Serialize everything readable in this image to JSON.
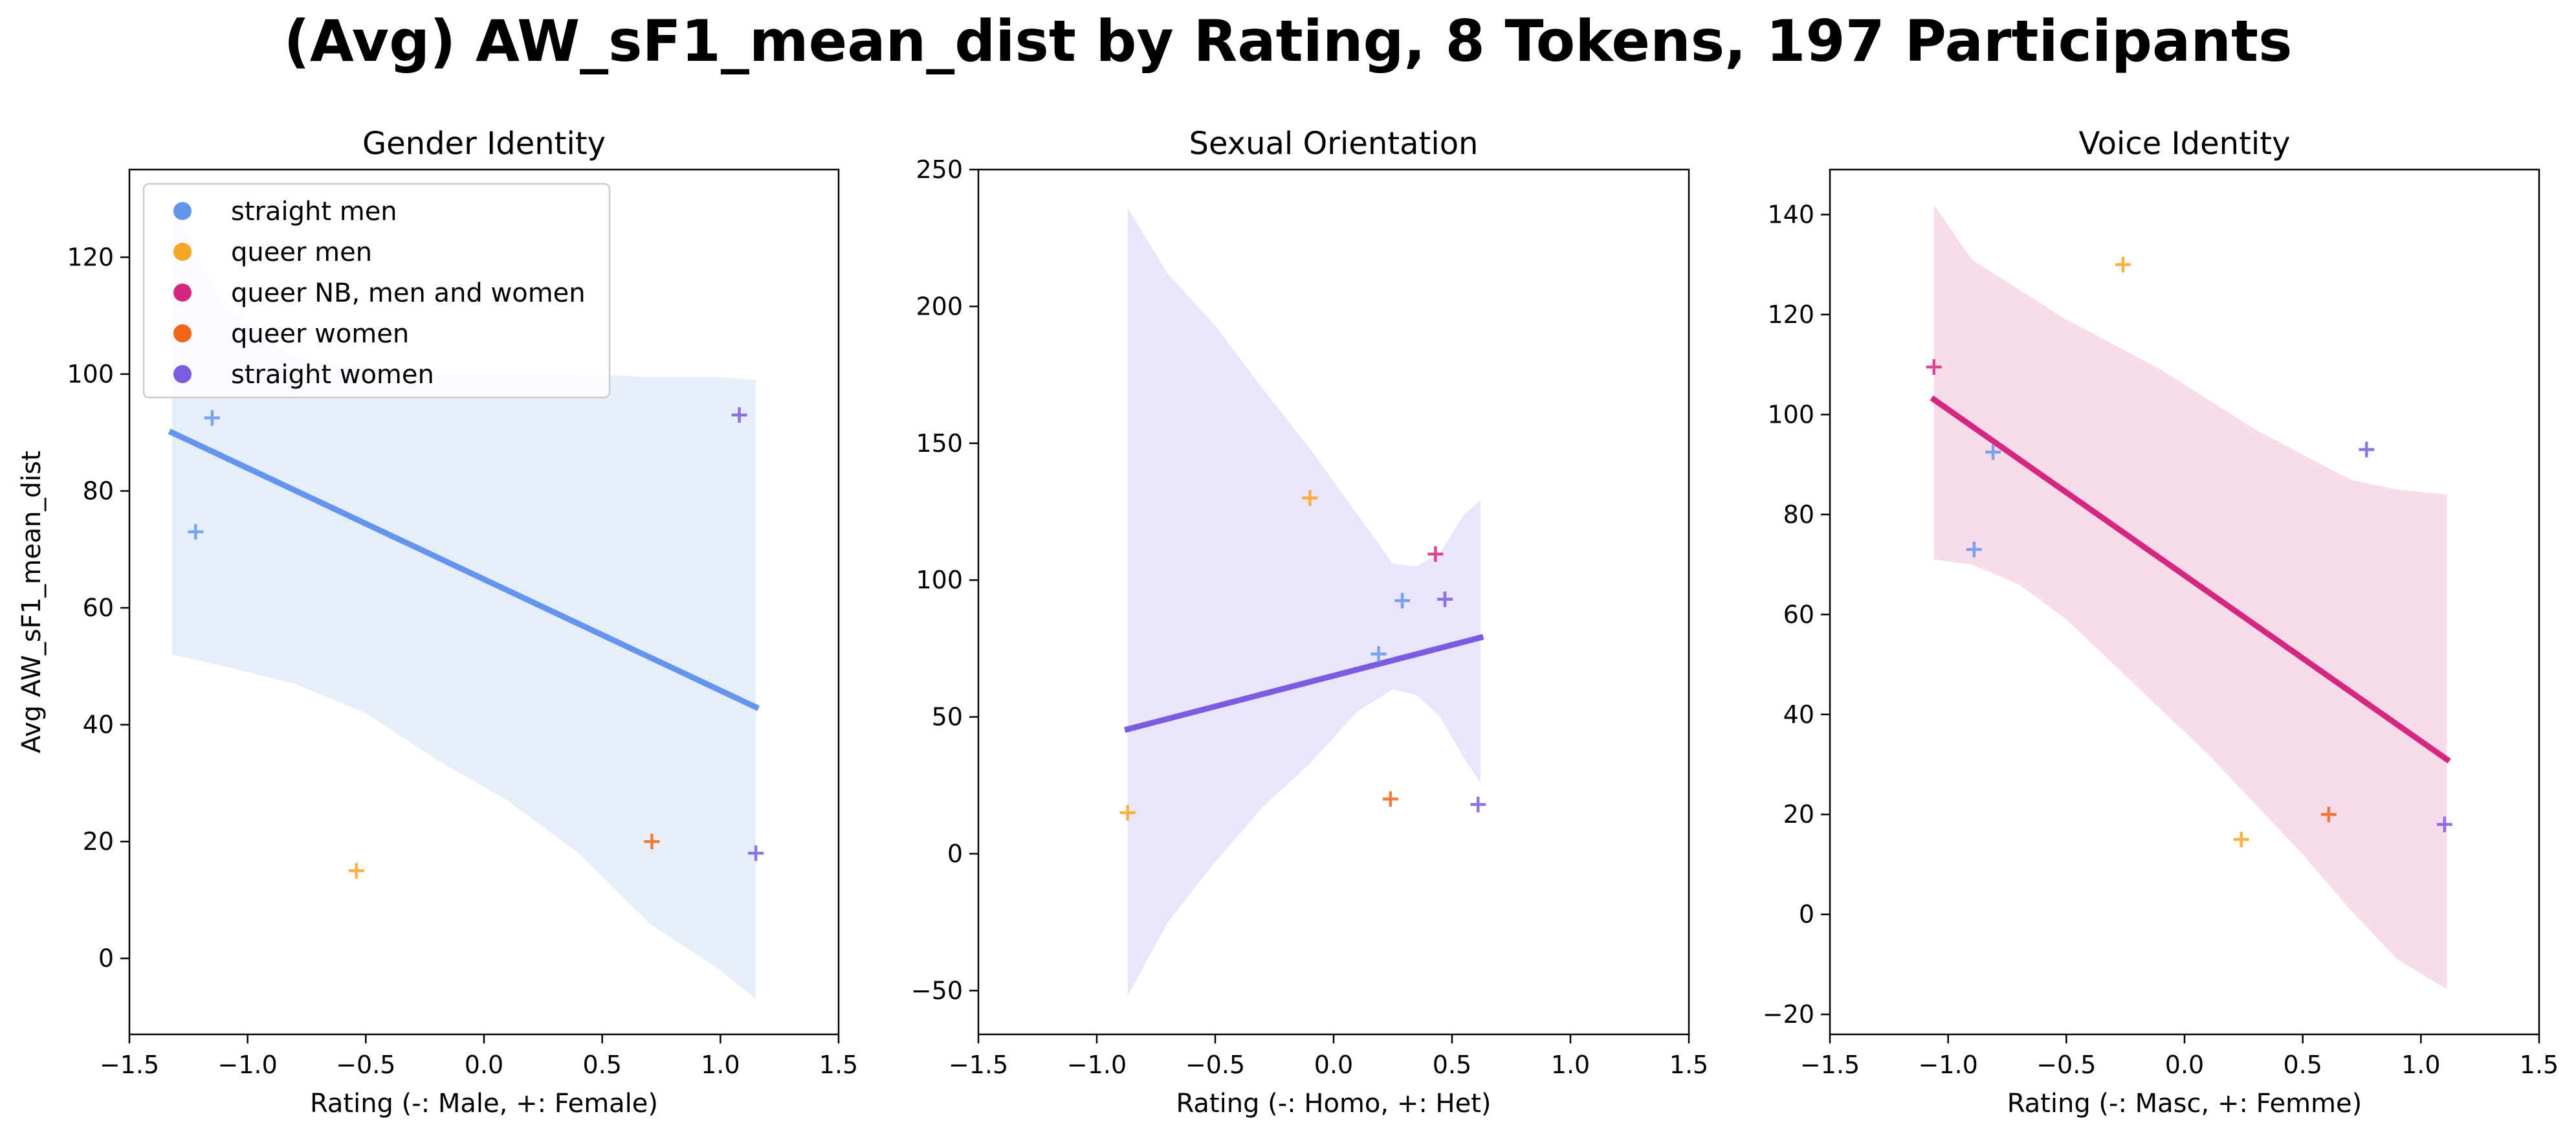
{
  "figure": {
    "suptitle": "(Avg) AW_sF1_mean_dist by Rating, 8 Tokens, 197 Participants"
  },
  "legend": {
    "placement": "upper-left",
    "entries": [
      {
        "label": "straight men",
        "color": "#6495ED"
      },
      {
        "label": "queer men",
        "color": "#F5A623"
      },
      {
        "label": "queer NB, men and women",
        "color": "#D62780"
      },
      {
        "label": "queer women",
        "color": "#F0651A"
      },
      {
        "label": "straight women",
        "color": "#7B5BE0"
      }
    ]
  },
  "chart_data": [
    {
      "type": "scatter",
      "title": "Gender Identity",
      "xlabel": "Rating (-: Male, +: Female)",
      "ylabel": "Avg AW_sF1_mean_dist",
      "xlim": [
        -1.5,
        1.5
      ],
      "ylim": [
        -13,
        135
      ],
      "xticks": [
        -1.5,
        -1.0,
        -0.5,
        0.0,
        0.5,
        1.0,
        1.5
      ],
      "xtick_labels": [
        "−1.5",
        "−1.0",
        "−0.5",
        "0.0",
        "0.5",
        "1.0",
        "1.5"
      ],
      "yticks": [
        0,
        20,
        40,
        60,
        80,
        100,
        120
      ],
      "ytick_labels": [
        "0",
        "20",
        "40",
        "60",
        "80",
        "100",
        "120"
      ],
      "grid": false,
      "show_legend": true,
      "points": [
        {
          "x": -1.22,
          "y": 73,
          "group": "straight men"
        },
        {
          "x": -1.15,
          "y": 92.5,
          "group": "straight men"
        },
        {
          "x": -0.54,
          "y": 15,
          "group": "queer men"
        },
        {
          "x": 0.71,
          "y": 20,
          "group": "queer women"
        },
        {
          "x": 1.08,
          "y": 93,
          "group": "straight women"
        },
        {
          "x": 1.15,
          "y": 18,
          "group": "straight women"
        }
      ],
      "regression": {
        "color": "#6495ED",
        "x": [
          -1.32,
          1.15
        ],
        "y": [
          90,
          43
        ]
      },
      "band": {
        "color": "#6495ED",
        "x": [
          -1.32,
          -1.1,
          -0.8,
          -0.5,
          -0.2,
          0.1,
          0.4,
          0.7,
          1.0,
          1.15
        ],
        "upper": [
          129,
          112,
          103,
          101,
          100,
          100,
          100,
          99.5,
          99.5,
          99
        ],
        "lower": [
          52,
          50,
          47,
          42,
          34,
          27,
          18,
          6,
          -2,
          -7
        ]
      }
    },
    {
      "type": "scatter",
      "title": "Sexual Orientation",
      "xlabel": "Rating (-: Homo, +: Het)",
      "ylabel": "",
      "xlim": [
        -1.5,
        1.5
      ],
      "ylim": [
        -66,
        250
      ],
      "xticks": [
        -1.5,
        -1.0,
        -0.5,
        0.0,
        0.5,
        1.0,
        1.5
      ],
      "xtick_labels": [
        "−1.5",
        "−1.0",
        "−0.5",
        "0.0",
        "0.5",
        "1.0",
        "1.5"
      ],
      "yticks": [
        -50,
        0,
        50,
        100,
        150,
        200,
        250
      ],
      "ytick_labels": [
        "−50",
        "0",
        "50",
        "100",
        "150",
        "200",
        "250"
      ],
      "grid": false,
      "show_legend": false,
      "points": [
        {
          "x": -0.87,
          "y": 15,
          "group": "queer men"
        },
        {
          "x": -0.1,
          "y": 130,
          "group": "queer men"
        },
        {
          "x": 0.19,
          "y": 73,
          "group": "straight men"
        },
        {
          "x": 0.24,
          "y": 20,
          "group": "queer women"
        },
        {
          "x": 0.29,
          "y": 92.5,
          "group": "straight men"
        },
        {
          "x": 0.43,
          "y": 109.5,
          "group": "queer NB, men and women"
        },
        {
          "x": 0.47,
          "y": 93,
          "group": "straight women"
        },
        {
          "x": 0.61,
          "y": 18,
          "group": "straight women"
        }
      ],
      "regression": {
        "color": "#7B5BE0",
        "x": [
          -0.87,
          0.62
        ],
        "y": [
          45.5,
          79
        ]
      },
      "band": {
        "color": "#7B5BE0",
        "x": [
          -0.87,
          -0.7,
          -0.5,
          -0.3,
          -0.1,
          0.1,
          0.25,
          0.35,
          0.45,
          0.55,
          0.62
        ],
        "upper": [
          236,
          212,
          193,
          170,
          148,
          124,
          106,
          105,
          110,
          124,
          129
        ],
        "lower": [
          -52,
          -25,
          -3,
          17,
          33,
          52,
          60,
          58,
          50,
          35,
          26
        ]
      }
    },
    {
      "type": "scatter",
      "title": "Voice Identity",
      "xlabel": "Rating (-: Masc, +: Femme)",
      "ylabel": "",
      "xlim": [
        -1.5,
        1.5
      ],
      "ylim": [
        -24,
        149
      ],
      "xticks": [
        -1.5,
        -1.0,
        -0.5,
        0.0,
        0.5,
        1.0,
        1.5
      ],
      "xtick_labels": [
        "−1.5",
        "−1.0",
        "−0.5",
        "0.0",
        "0.5",
        "1.0",
        "1.5"
      ],
      "yticks": [
        -20,
        0,
        20,
        40,
        60,
        80,
        100,
        120,
        140
      ],
      "ytick_labels": [
        "−20",
        "0",
        "20",
        "40",
        "60",
        "80",
        "100",
        "120",
        "140"
      ],
      "grid": false,
      "show_legend": false,
      "points": [
        {
          "x": -1.06,
          "y": 109.5,
          "group": "queer NB, men and women"
        },
        {
          "x": -0.89,
          "y": 73,
          "group": "straight men"
        },
        {
          "x": -0.81,
          "y": 92.5,
          "group": "straight men"
        },
        {
          "x": -0.26,
          "y": 130,
          "group": "queer men"
        },
        {
          "x": 0.24,
          "y": 15,
          "group": "queer men"
        },
        {
          "x": 0.61,
          "y": 20,
          "group": "queer women"
        },
        {
          "x": 0.77,
          "y": 93,
          "group": "straight women"
        },
        {
          "x": 1.1,
          "y": 18,
          "group": "straight women"
        }
      ],
      "regression": {
        "color": "#D62780",
        "x": [
          -1.06,
          1.11
        ],
        "y": [
          103,
          31
        ]
      },
      "band": {
        "color": "#D62780",
        "x": [
          -1.06,
          -0.9,
          -0.7,
          -0.5,
          -0.3,
          -0.1,
          0.1,
          0.3,
          0.5,
          0.7,
          0.9,
          1.11
        ],
        "upper": [
          142,
          131,
          125,
          119,
          114,
          109,
          103,
          97,
          92,
          87,
          85,
          84
        ],
        "lower": [
          71,
          70,
          66,
          59,
          50,
          41,
          32,
          22,
          12,
          1,
          -9,
          -15
        ]
      }
    }
  ]
}
